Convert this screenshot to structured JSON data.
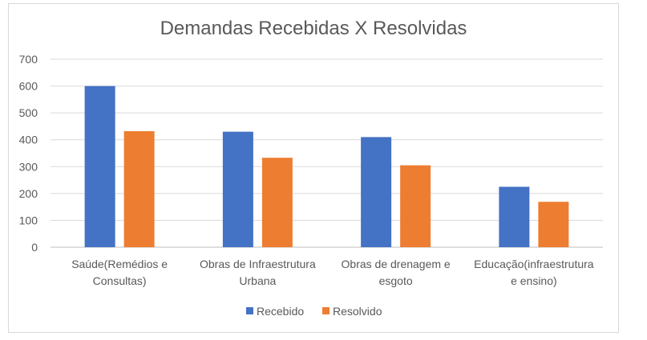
{
  "chart_data": {
    "type": "bar",
    "title": "Demandas Recebidas X Resolvidas",
    "categories": [
      [
        "Saúde(Remédios e",
        "Consultas)"
      ],
      [
        "Obras de Infraestrutura",
        "Urbana"
      ],
      [
        "Obras de drenagem e",
        "esgoto"
      ],
      [
        "Educação(infraestrutura",
        "e ensino)"
      ]
    ],
    "series": [
      {
        "name": "Recebido",
        "color": "#4472c4",
        "values": [
          600,
          430,
          410,
          225
        ]
      },
      {
        "name": "Resolvido",
        "color": "#ed7d31",
        "values": [
          432,
          333,
          305,
          169
        ]
      }
    ],
    "ylim": [
      0,
      700
    ],
    "yticks": [
      "0",
      "100",
      "200",
      "300",
      "400",
      "500",
      "600",
      "700"
    ],
    "grid": true,
    "legend_position": "bottom"
  }
}
